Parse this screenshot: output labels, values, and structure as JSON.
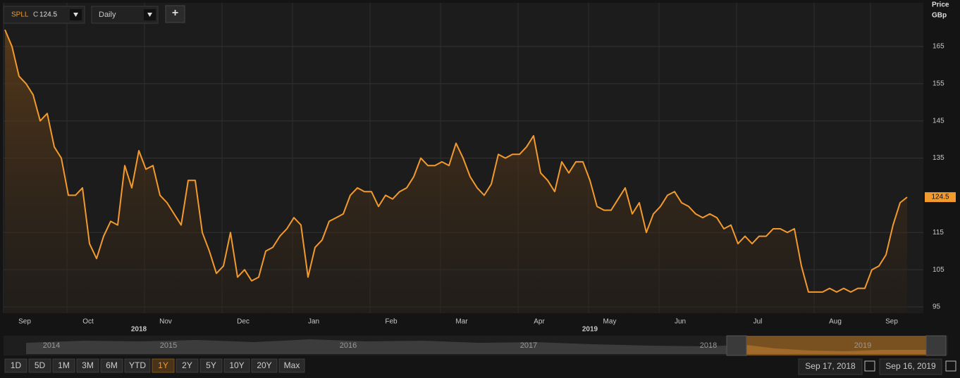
{
  "chart_data": {
    "type": "line",
    "series": [
      {
        "name": "SPLL",
        "color": "#f39a2e",
        "values": [
          169.5,
          165,
          157,
          155,
          152,
          145,
          147,
          138,
          135,
          125,
          125,
          127,
          112,
          108,
          114,
          118,
          117,
          133,
          127,
          137,
          132,
          133,
          125,
          123,
          120,
          117,
          129,
          129,
          115,
          110,
          104,
          106,
          115,
          103,
          105,
          102,
          103,
          110,
          111,
          114,
          116,
          119,
          117,
          103,
          111,
          113,
          118,
          119,
          120,
          125,
          127,
          126,
          126,
          122,
          125,
          124,
          126,
          127,
          130,
          135,
          133,
          133,
          134,
          133,
          139,
          135,
          130,
          127,
          125,
          128,
          136,
          135,
          136,
          136,
          138,
          141,
          131,
          129,
          126,
          134,
          131,
          134,
          134,
          129,
          122,
          121,
          121,
          124,
          127,
          120,
          123,
          115,
          120,
          122,
          125,
          126,
          123,
          122,
          120,
          119,
          120,
          119,
          116,
          117,
          112,
          114,
          112,
          114,
          114,
          116,
          116,
          115,
          116,
          106,
          99,
          99,
          99,
          100,
          99,
          100,
          99,
          100,
          100,
          105,
          106,
          109,
          117,
          123,
          124.5
        ]
      }
    ],
    "xlim": [
      0,
      128
    ],
    "xticks": [
      {
        "value": 2,
        "label": "Sep"
      },
      {
        "value": 11,
        "label": "Oct"
      },
      {
        "value": 22,
        "label": "Nov"
      },
      {
        "value": 33,
        "label": "Dec"
      },
      {
        "value": 43,
        "label": "Jan"
      },
      {
        "value": 54,
        "label": "Feb"
      },
      {
        "value": 64,
        "label": "Mar"
      },
      {
        "value": 75,
        "label": "Apr"
      },
      {
        "value": 85,
        "label": "May"
      },
      {
        "value": 95,
        "label": "Jun"
      },
      {
        "value": 106,
        "label": "Jul"
      },
      {
        "value": 117,
        "label": "Aug"
      },
      {
        "value": 125,
        "label": "Sep"
      }
    ],
    "year_ticks": [
      {
        "value": 19,
        "label": "2018"
      },
      {
        "value": 83,
        "label": "2019"
      }
    ],
    "ylim": [
      93.3,
      175.6
    ],
    "yticks": [
      95,
      105,
      115,
      135,
      145,
      155,
      165
    ],
    "y_axis_label": "Price",
    "y_axis_unit": "GBp",
    "grid": true
  },
  "toolbar": {
    "symbol": "SPLL",
    "close_prefix": "C",
    "close": "124.5",
    "interval": "Daily",
    "add": "+"
  },
  "navigator": {
    "years": [
      "2014",
      "2015",
      "2016",
      "2017",
      "2018",
      "2019"
    ]
  },
  "range_buttons": [
    "1D",
    "5D",
    "1M",
    "3M",
    "6M",
    "YTD",
    "1Y",
    "2Y",
    "5Y",
    "10Y",
    "20Y",
    "Max"
  ],
  "active_range": "1Y",
  "date_range": {
    "from": "Sep 17, 2018",
    "to": "Sep 16, 2019"
  }
}
